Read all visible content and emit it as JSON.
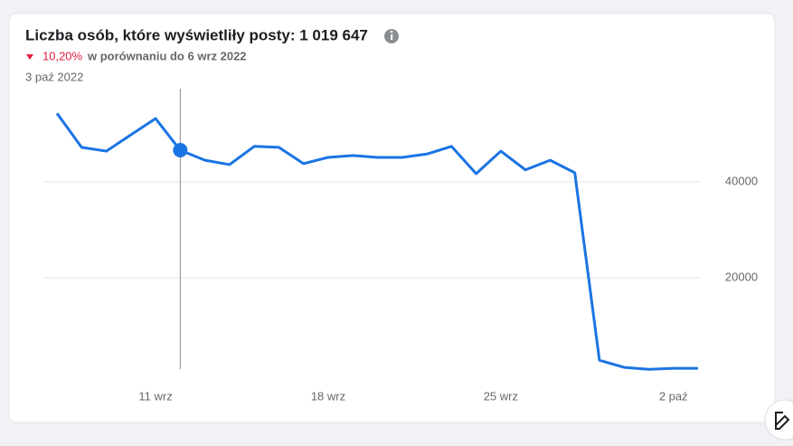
{
  "header": {
    "title": "Liczba osób, które wyświetliły posty: 1 019 647",
    "change": "10,20%",
    "comparison": "w porównaniu do 6 wrz 2022",
    "date": "3 paź 2022"
  },
  "chart_data": {
    "type": "line",
    "categories": [
      null,
      null,
      null,
      null,
      "11 wrz",
      null,
      null,
      null,
      null,
      null,
      null,
      "18 wrz",
      null,
      null,
      null,
      null,
      null,
      null,
      "25 wrz",
      null,
      null,
      null,
      null,
      null,
      null,
      "2 paź",
      null
    ],
    "series": [
      {
        "color": "#1b74e4",
        "values": [
          54300,
          47200,
          46400,
          49800,
          53200,
          46600,
          44500,
          43600,
          47400,
          47200,
          43800,
          45100,
          45500,
          45100,
          45100,
          45800,
          47400,
          41700,
          46400,
          42500,
          44500,
          41900,
          2800,
          1300,
          900,
          1100,
          1100
        ]
      }
    ],
    "ylim": [
      0,
      60000
    ],
    "yticks": [
      20000,
      40000
    ],
    "grid": true
  }
}
